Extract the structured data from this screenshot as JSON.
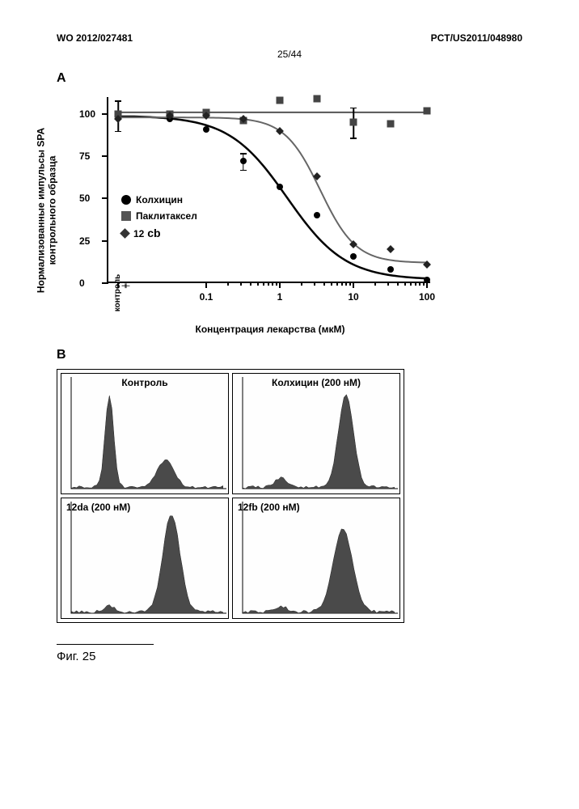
{
  "header": {
    "left": "WO 2012/027481",
    "right": "PCT/US2011/048980",
    "page_num": "25/44"
  },
  "panel_a": {
    "label": "A",
    "y_axis_label": "Нормализованные импульсы SPA\nконтрольного образца",
    "x_axis_label": "Концентрация лекарства (мкМ)",
    "ylim": [
      0,
      110
    ],
    "y_ticks": [
      0,
      25,
      50,
      75,
      100
    ],
    "x_scale": "log",
    "xlim_log": [
      -2,
      2
    ],
    "x_ticks_log": [
      -1,
      0,
      1,
      2
    ],
    "x_tick_labels": [
      "0.1",
      "1",
      "10",
      "100"
    ],
    "control_label": "контроль",
    "legend": [
      {
        "marker": "circle",
        "label": "Колхицин",
        "color": "#000000"
      },
      {
        "marker": "square",
        "label": "Паклитаксел",
        "color": "#555555"
      },
      {
        "marker": "diamond",
        "label": "12cb",
        "color": "#333333"
      }
    ],
    "series": {
      "colchicine": {
        "marker": "circle",
        "color": "#000000",
        "points": [
          {
            "logx": -2.3,
            "y": 99,
            "err": 9
          },
          {
            "logx": -1.5,
            "y": 97
          },
          {
            "logx": -1,
            "y": 91
          },
          {
            "logx": -0.5,
            "y": 72,
            "err": 5
          },
          {
            "logx": 0,
            "y": 57
          },
          {
            "logx": 0.5,
            "y": 40
          },
          {
            "logx": 1,
            "y": 16
          },
          {
            "logx": 1.5,
            "y": 8
          },
          {
            "logx": 2,
            "y": 2
          }
        ],
        "curve_params": {
          "top": 99,
          "bottom": 2,
          "logIC50": 0.1,
          "hill": 1.1
        }
      },
      "paclitaxel": {
        "marker": "square",
        "color": "#555555",
        "points": [
          {
            "logx": -2.3,
            "y": 100
          },
          {
            "logx": -1.5,
            "y": 100
          },
          {
            "logx": -1,
            "y": 101
          },
          {
            "logx": -0.5,
            "y": 96
          },
          {
            "logx": 0,
            "y": 108
          },
          {
            "logx": 0.5,
            "y": 109
          },
          {
            "logx": 1,
            "y": 95,
            "err": 9
          },
          {
            "logx": 1.5,
            "y": 94
          },
          {
            "logx": 2,
            "y": 102
          }
        ],
        "line_y": 101
      },
      "compound_12cb": {
        "marker": "diamond",
        "color": "#333333",
        "points": [
          {
            "logx": -2.3,
            "y": 97
          },
          {
            "logx": -1.5,
            "y": 99
          },
          {
            "logx": -1,
            "y": 99
          },
          {
            "logx": -0.5,
            "y": 97
          },
          {
            "logx": 0,
            "y": 90
          },
          {
            "logx": 0.5,
            "y": 63
          },
          {
            "logx": 1,
            "y": 23
          },
          {
            "logx": 1.5,
            "y": 20
          },
          {
            "logx": 2,
            "y": 11
          }
        ],
        "curve_params": {
          "top": 98,
          "bottom": 12,
          "logIC50": 0.55,
          "hill": 1.8
        }
      }
    },
    "colors": {
      "axis": "#000000",
      "bg": "#ffffff"
    }
  },
  "panel_b": {
    "label": "B",
    "cells": [
      {
        "label": "Контроль",
        "label_pos": "center",
        "profile": "two_peak_left"
      },
      {
        "label": "Колхицин (200 нМ)",
        "label_pos": "center",
        "profile": "right_peak"
      },
      {
        "label": "12da (200 нМ)",
        "label_pos": "left",
        "profile": "right_peak_tall"
      },
      {
        "label": "12fb (200 нМ)",
        "label_pos": "left",
        "profile": "right_peak_med"
      }
    ],
    "hist_color": "#4a4a4a",
    "bg": "#ffffff"
  },
  "figure_caption": "Фиг. 25"
}
